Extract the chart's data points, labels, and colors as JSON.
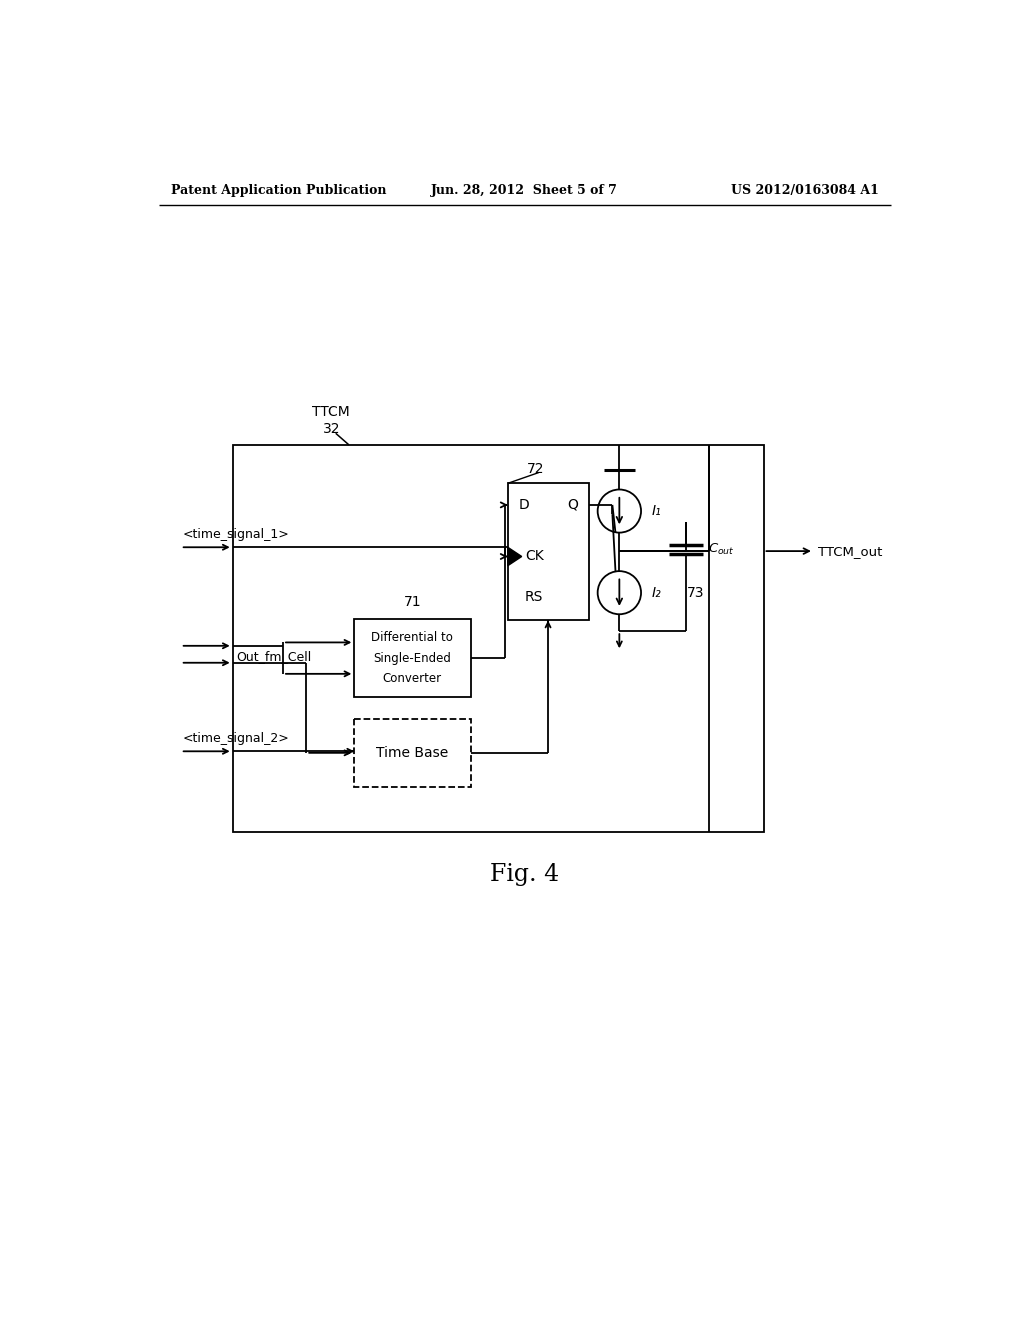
{
  "bg": "#ffffff",
  "header_left": "Patent Application Publication",
  "header_center": "Jun. 28, 2012  Sheet 5 of 7",
  "header_right": "US 2012/0163084 A1",
  "caption": "Fig. 4",
  "ttcm_label": "TTCM",
  "ttcm_num": "32",
  "label_72": "72",
  "label_71": "71",
  "label_73": "73",
  "sig1": "<time_signal_1>",
  "sig2": "<time_signal_2>",
  "out_fm_cell": "Out_fm_Cell",
  "ttcm_out": "TTCM_out",
  "diff_conv": [
    "Differential to",
    "Single-Ended",
    "Converter"
  ],
  "time_base": "Time Base",
  "I1": "I₁",
  "I2": "I₂",
  "dff_D": "D",
  "dff_Q": "Q",
  "dff_CK": "CK",
  "dff_RS": "RS"
}
